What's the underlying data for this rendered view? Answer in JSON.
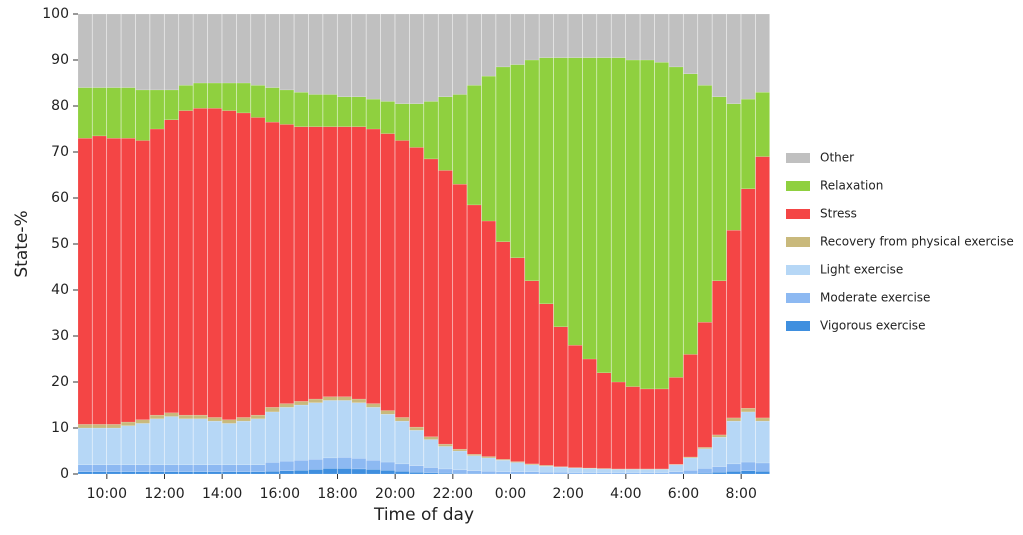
{
  "chart_data": {
    "type": "stacked-bar",
    "x_label": "Time of day",
    "y_label": "State-%",
    "x": [
      9.25,
      9.75,
      10.25,
      10.75,
      11.25,
      11.75,
      12.25,
      12.75,
      13.25,
      13.75,
      14.25,
      14.75,
      15.25,
      15.75,
      16.25,
      16.75,
      17.25,
      17.75,
      18.25,
      18.75,
      19.25,
      19.75,
      20.25,
      20.75,
      21.25,
      21.75,
      22.25,
      22.75,
      23.25,
      23.75,
      24.25,
      24.75,
      25.25,
      25.75,
      26.25,
      26.75,
      27.25,
      27.75,
      28.25,
      28.75,
      29.25,
      29.75,
      30.25,
      30.75,
      31.25,
      31.75,
      32.25,
      32.75
    ],
    "xlim": [
      9,
      33
    ],
    "xticks": [
      {
        "value": 10,
        "label": "10:00"
      },
      {
        "value": 12,
        "label": "12:00"
      },
      {
        "value": 14,
        "label": "14:00"
      },
      {
        "value": 16,
        "label": "16:00"
      },
      {
        "value": 18,
        "label": "18:00"
      },
      {
        "value": 20,
        "label": "20:00"
      },
      {
        "value": 22,
        "label": "22:00"
      },
      {
        "value": 24,
        "label": "0:00"
      },
      {
        "value": 26,
        "label": "2:00"
      },
      {
        "value": 28,
        "label": "4:00"
      },
      {
        "value": 30,
        "label": "6:00"
      },
      {
        "value": 32,
        "label": "8:00"
      }
    ],
    "ylim": [
      0,
      100
    ],
    "yticks": [
      0,
      10,
      20,
      30,
      40,
      50,
      60,
      70,
      80,
      90,
      100
    ],
    "legend": "right",
    "series": [
      {
        "name": "Vigorous exercise",
        "color": "#3f8fdf",
        "values": [
          0.5,
          0.5,
          0.5,
          0.5,
          0.5,
          0.5,
          0.5,
          0.5,
          0.5,
          0.5,
          0.5,
          0.5,
          0.5,
          0.6,
          0.7,
          0.8,
          1,
          1.2,
          1.2,
          1.1,
          1,
          0.8,
          0.6,
          0.4,
          0.3,
          0.2,
          0.1,
          0.1,
          0,
          0,
          0,
          0,
          0,
          0,
          0,
          0,
          0,
          0,
          0,
          0,
          0,
          0,
          0.1,
          0.2,
          0.4,
          0.6,
          0.7,
          0.6
        ]
      },
      {
        "name": "Moderate exercise",
        "color": "#8db9f2",
        "values": [
          1.5,
          1.5,
          1.5,
          1.5,
          1.5,
          1.5,
          1.5,
          1.5,
          1.5,
          1.5,
          1.5,
          1.5,
          1.5,
          1.9,
          2.1,
          2.2,
          2.2,
          2.3,
          2.4,
          2.3,
          2,
          1.8,
          1.6,
          1.4,
          1.1,
          0.9,
          0.8,
          0.6,
          0.6,
          0.5,
          0.5,
          0.5,
          0.4,
          0.4,
          0.3,
          0.3,
          0.3,
          0.3,
          0.3,
          0.3,
          0.3,
          0.5,
          0.7,
          1,
          1.2,
          1.6,
          1.9,
          1.8
        ]
      },
      {
        "name": "Light exercise",
        "color": "#b6d7f6",
        "values": [
          8,
          8,
          8,
          8.5,
          9,
          10,
          10.5,
          10,
          10,
          9.5,
          9,
          9.5,
          10,
          11,
          11.7,
          12,
          12.3,
          12.5,
          12.4,
          12.1,
          11.5,
          10.4,
          9.3,
          7.7,
          6.1,
          4.9,
          4.1,
          3.3,
          2.9,
          2.5,
          2,
          1.5,
          1.3,
          1.1,
          1,
          0.9,
          0.8,
          0.7,
          0.7,
          0.7,
          0.7,
          1.5,
          2.7,
          4.3,
          6.4,
          9.3,
          10.9,
          9.1
        ]
      },
      {
        "name": "Recovery from physical exercise",
        "color": "#c9b97c",
        "values": [
          0.8,
          0.8,
          0.8,
          0.8,
          0.8,
          0.8,
          0.8,
          0.8,
          0.8,
          0.8,
          0.8,
          0.8,
          0.8,
          1,
          0.8,
          0.8,
          0.8,
          0.8,
          0.8,
          0.8,
          0.8,
          0.8,
          0.8,
          0.7,
          0.6,
          0.5,
          0.4,
          0.3,
          0.3,
          0.2,
          0.2,
          0.2,
          0.2,
          0.1,
          0.1,
          0.1,
          0.1,
          0.1,
          0.1,
          0.1,
          0.1,
          0.1,
          0.2,
          0.3,
          0.5,
          0.7,
          0.8,
          0.7
        ]
      },
      {
        "name": "Stress",
        "color": "#f44545",
        "values": [
          62.2,
          62.7,
          62.2,
          61.7,
          60.7,
          62.2,
          63.7,
          66.2,
          66.7,
          67.2,
          67.2,
          66.2,
          64.7,
          62,
          60.7,
          59.7,
          59.2,
          58.7,
          58.7,
          59.2,
          59.7,
          60.2,
          60.2,
          60.8,
          60.4,
          59.5,
          57.6,
          54.2,
          51.2,
          47.3,
          44.3,
          39.8,
          35.1,
          30.4,
          26.6,
          23.7,
          20.8,
          18.9,
          17.9,
          17.4,
          17.4,
          18.9,
          22.3,
          27.2,
          33.5,
          40.8,
          47.7,
          56.8
        ]
      },
      {
        "name": "Relaxation",
        "color": "#8fd03f",
        "values": [
          11,
          10.5,
          11,
          11,
          11,
          8.5,
          6.5,
          5.5,
          5.5,
          5.5,
          6,
          6.5,
          7,
          7.5,
          7.5,
          7.5,
          7,
          7,
          6.5,
          6.5,
          6.5,
          7,
          8,
          9.5,
          12.5,
          16,
          19.5,
          26,
          31.5,
          38,
          42,
          48,
          53.5,
          58.5,
          62.5,
          65.5,
          68.5,
          70.5,
          71,
          71.5,
          71,
          67.5,
          61,
          51.5,
          40,
          27.5,
          19.5,
          14
        ]
      },
      {
        "name": "Other",
        "color": "#c0c0c0",
        "values": [
          16,
          16,
          16,
          16,
          16.5,
          16.5,
          16.5,
          15.5,
          15,
          15,
          15,
          15,
          15.5,
          16,
          16.5,
          17,
          17.5,
          17.5,
          18,
          18,
          18.5,
          19,
          19.5,
          19.5,
          19,
          18,
          17.5,
          15.5,
          13.5,
          11.5,
          11,
          10,
          9.5,
          9.5,
          9.5,
          9.5,
          9.5,
          9.5,
          10,
          10,
          10.5,
          11.5,
          13,
          15.5,
          18,
          19.5,
          18.5,
          17
        ]
      }
    ]
  }
}
